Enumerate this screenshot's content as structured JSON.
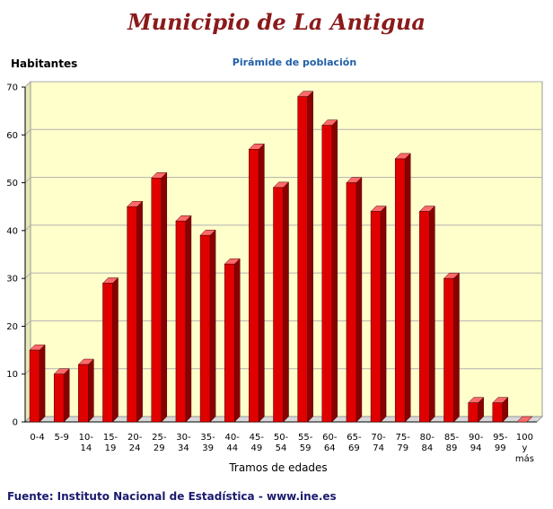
{
  "header": {
    "title": "Municipio de La Antigua"
  },
  "footer": {
    "source": "Fuente: Instituto Nacional de Estadística - www.ine.es"
  },
  "colors": {
    "bar_front": "#e00000",
    "bar_side": "#8a0000",
    "bar_top": "#ff6a6a",
    "plot_bg": "#ffffcc",
    "title": "#8b1a1a",
    "subtitle": "#1f5fa8"
  },
  "chart_data": {
    "type": "bar",
    "title": "Pirámide de población",
    "xlabel": "Tramos de edades",
    "ylabel": "Habitantes",
    "ylim": [
      0,
      70
    ],
    "yticks": [
      0,
      10,
      20,
      30,
      40,
      50,
      60,
      70
    ],
    "grid": true,
    "categories": [
      "0-4",
      "5-9",
      "10-14",
      "15-19",
      "20-24",
      "25-29",
      "30-34",
      "35-39",
      "40-44",
      "45-49",
      "50-54",
      "55-59",
      "60-64",
      "65-69",
      "70-74",
      "75-79",
      "80-84",
      "85-89",
      "90-94",
      "95-99",
      "100 y más"
    ],
    "tick_labels": [
      [
        "0-4"
      ],
      [
        "5-9"
      ],
      [
        "10-",
        "14"
      ],
      [
        "15-",
        "19"
      ],
      [
        "20-",
        "24"
      ],
      [
        "25-",
        "29"
      ],
      [
        "30-",
        "34"
      ],
      [
        "35-",
        "39"
      ],
      [
        "40-",
        "44"
      ],
      [
        "45-",
        "49"
      ],
      [
        "50-",
        "54"
      ],
      [
        "55-",
        "59"
      ],
      [
        "60-",
        "64"
      ],
      [
        "65-",
        "69"
      ],
      [
        "70-",
        "74"
      ],
      [
        "75-",
        "79"
      ],
      [
        "80-",
        "84"
      ],
      [
        "85-",
        "89"
      ],
      [
        "90-",
        "94"
      ],
      [
        "95-",
        "99"
      ],
      [
        "100",
        "y",
        "más"
      ]
    ],
    "values": [
      15,
      10,
      12,
      29,
      45,
      51,
      42,
      39,
      33,
      57,
      49,
      68,
      62,
      50,
      44,
      55,
      44,
      30,
      4,
      4,
      0
    ]
  }
}
